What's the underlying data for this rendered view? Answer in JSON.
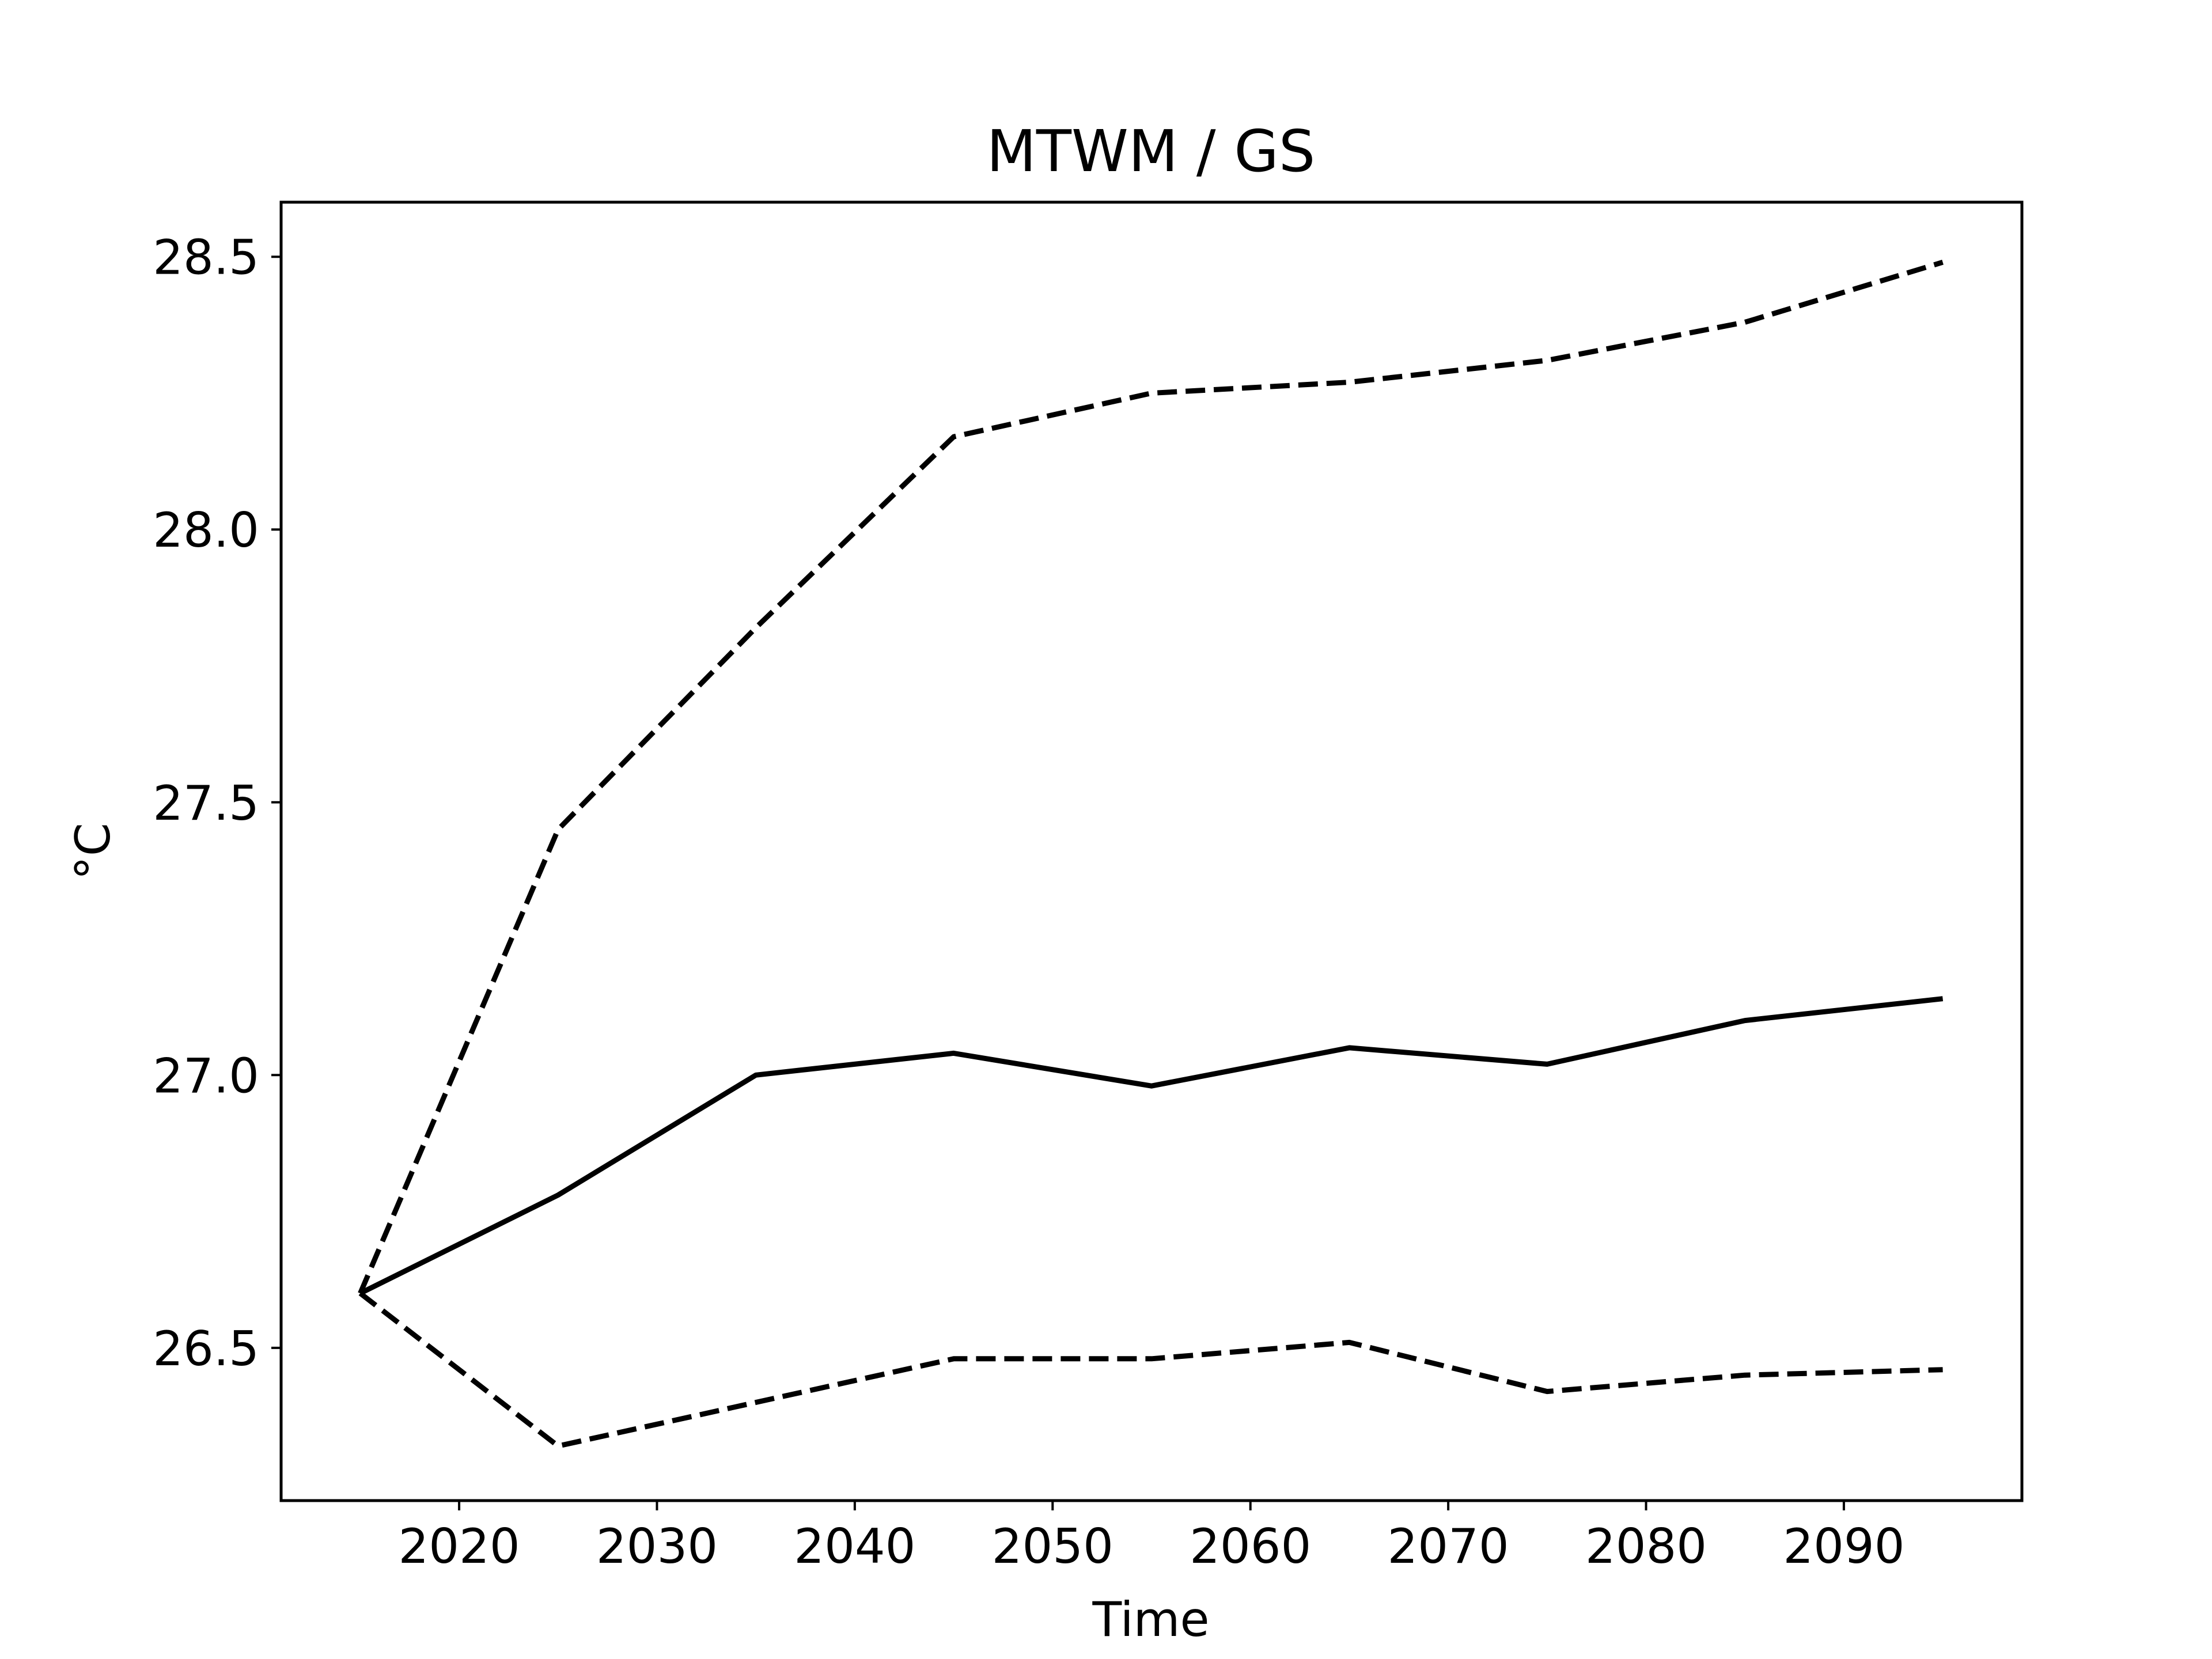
{
  "chart_data": {
    "type": "line",
    "title": "MTWM / GS",
    "xlabel": "Time",
    "ylabel": "°C",
    "xlim": [
      2011,
      2099
    ],
    "ylim": [
      26.22,
      28.6
    ],
    "x_ticks": [
      2020,
      2030,
      2040,
      2050,
      2060,
      2070,
      2080,
      2090
    ],
    "y_ticks": [
      26.5,
      27.0,
      27.5,
      28.0,
      28.5
    ],
    "x_tick_labels": [
      "2020",
      "2030",
      "2040",
      "2050",
      "2060",
      "2070",
      "2080",
      "2090"
    ],
    "y_tick_labels": [
      "26.5",
      "27.0",
      "27.5",
      "28.0",
      "28.5"
    ],
    "grid": false,
    "x": [
      2015,
      2025,
      2035,
      2045,
      2055,
      2065,
      2075,
      2085,
      2095
    ],
    "series": [
      {
        "style": "solid",
        "color": "#000000",
        "values": [
          26.6,
          26.78,
          27.0,
          27.04,
          26.98,
          27.05,
          27.02,
          27.1,
          27.14
        ]
      },
      {
        "style": "dashed",
        "color": "#000000",
        "values": [
          26.6,
          27.45,
          27.82,
          28.17,
          28.25,
          28.27,
          28.31,
          28.38,
          28.49
        ]
      },
      {
        "style": "dashed",
        "color": "#000000",
        "values": [
          26.6,
          26.32,
          26.4,
          26.48,
          26.48,
          26.51,
          26.42,
          26.45,
          26.46
        ]
      }
    ]
  }
}
